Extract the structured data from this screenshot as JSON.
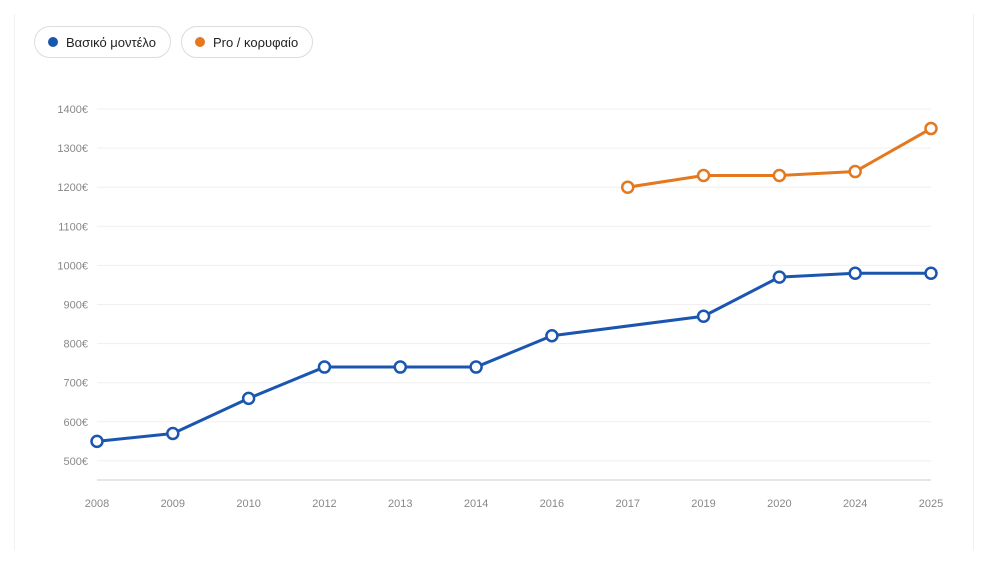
{
  "legend": [
    {
      "label": "Βασικό μοντέλο",
      "color": "#1a56b0"
    },
    {
      "label": "Pro / κορυφαίο",
      "color": "#e3781e"
    }
  ],
  "chart_data": {
    "type": "line",
    "title": "",
    "xlabel": "",
    "ylabel": "",
    "categories": [
      "2008",
      "2009",
      "2010",
      "2012",
      "2013",
      "2014",
      "2016",
      "2017",
      "2019",
      "2020",
      "2024",
      "2025"
    ],
    "ylim": [
      450,
      1400
    ],
    "yticks": [
      500,
      600,
      700,
      800,
      900,
      1000,
      1100,
      1200,
      1300,
      1400
    ],
    "ytick_labels": [
      "500€",
      "600€",
      "700€",
      "800€",
      "900€",
      "1000€",
      "1100€",
      "1200€",
      "1300€",
      "1400€"
    ],
    "grid": true,
    "legend_position": "top-left",
    "series": [
      {
        "name": "Βασικό μοντέλο",
        "color": "#1a56b0",
        "values": [
          550,
          570,
          660,
          740,
          740,
          740,
          820,
          null,
          870,
          970,
          980,
          980
        ]
      },
      {
        "name": "Pro / κορυφαίο",
        "color": "#e3781e",
        "values": [
          null,
          null,
          null,
          null,
          null,
          null,
          null,
          1200,
          1230,
          1230,
          1240,
          1350
        ]
      }
    ]
  }
}
